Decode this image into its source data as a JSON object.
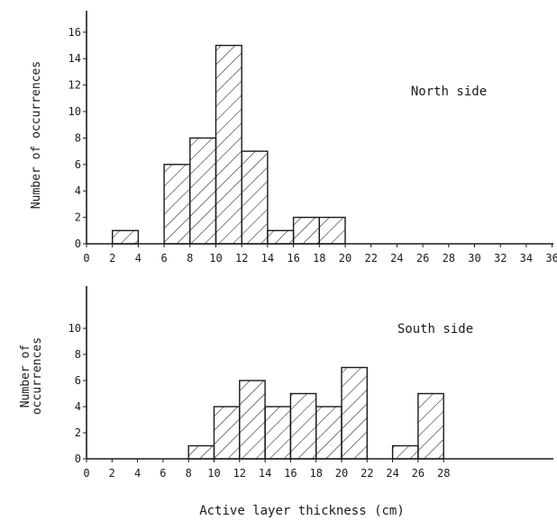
{
  "chart_data": [
    {
      "type": "bar",
      "panel_label": "North side",
      "ylabel": "Number of occurrences",
      "xlim": [
        0,
        36
      ],
      "ylim": [
        0,
        16
      ],
      "x_ticks": [
        0,
        2,
        4,
        6,
        8,
        10,
        12,
        14,
        16,
        18,
        20,
        22,
        24,
        26,
        28,
        30,
        32,
        34,
        36
      ],
      "y_ticks": [
        0,
        2,
        4,
        6,
        8,
        10,
        12,
        14,
        16
      ],
      "bins": [
        {
          "start": 2,
          "end": 4,
          "value": 1
        },
        {
          "start": 6,
          "end": 8,
          "value": 6
        },
        {
          "start": 8,
          "end": 10,
          "value": 8
        },
        {
          "start": 10,
          "end": 12,
          "value": 15
        },
        {
          "start": 12,
          "end": 14,
          "value": 7
        },
        {
          "start": 14,
          "end": 16,
          "value": 1
        },
        {
          "start": 16,
          "end": 18,
          "value": 2
        },
        {
          "start": 18,
          "end": 20,
          "value": 2
        }
      ],
      "hatch": "diagonal",
      "grid": false
    },
    {
      "type": "bar",
      "panel_label": "South side",
      "ylabel": "Number of\noccurrences",
      "xlim": [
        0,
        36
      ],
      "ylim": [
        0,
        12
      ],
      "x_ticks": [
        0,
        2,
        4,
        6,
        8,
        10,
        12,
        14,
        16,
        18,
        20,
        22,
        24,
        26,
        28
      ],
      "y_ticks": [
        0,
        2,
        4,
        6,
        8,
        10
      ],
      "bins": [
        {
          "start": 8,
          "end": 10,
          "value": 1
        },
        {
          "start": 10,
          "end": 12,
          "value": 4
        },
        {
          "start": 12,
          "end": 14,
          "value": 6
        },
        {
          "start": 14,
          "end": 16,
          "value": 4
        },
        {
          "start": 16,
          "end": 18,
          "value": 5
        },
        {
          "start": 18,
          "end": 20,
          "value": 4
        },
        {
          "start": 20,
          "end": 22,
          "value": 7
        },
        {
          "start": 24,
          "end": 26,
          "value": 1
        },
        {
          "start": 26,
          "end": 28,
          "value": 5
        }
      ],
      "hatch": "diagonal",
      "grid": false
    }
  ],
  "figure": {
    "xlabel": "Active layer thickness (cm)"
  }
}
